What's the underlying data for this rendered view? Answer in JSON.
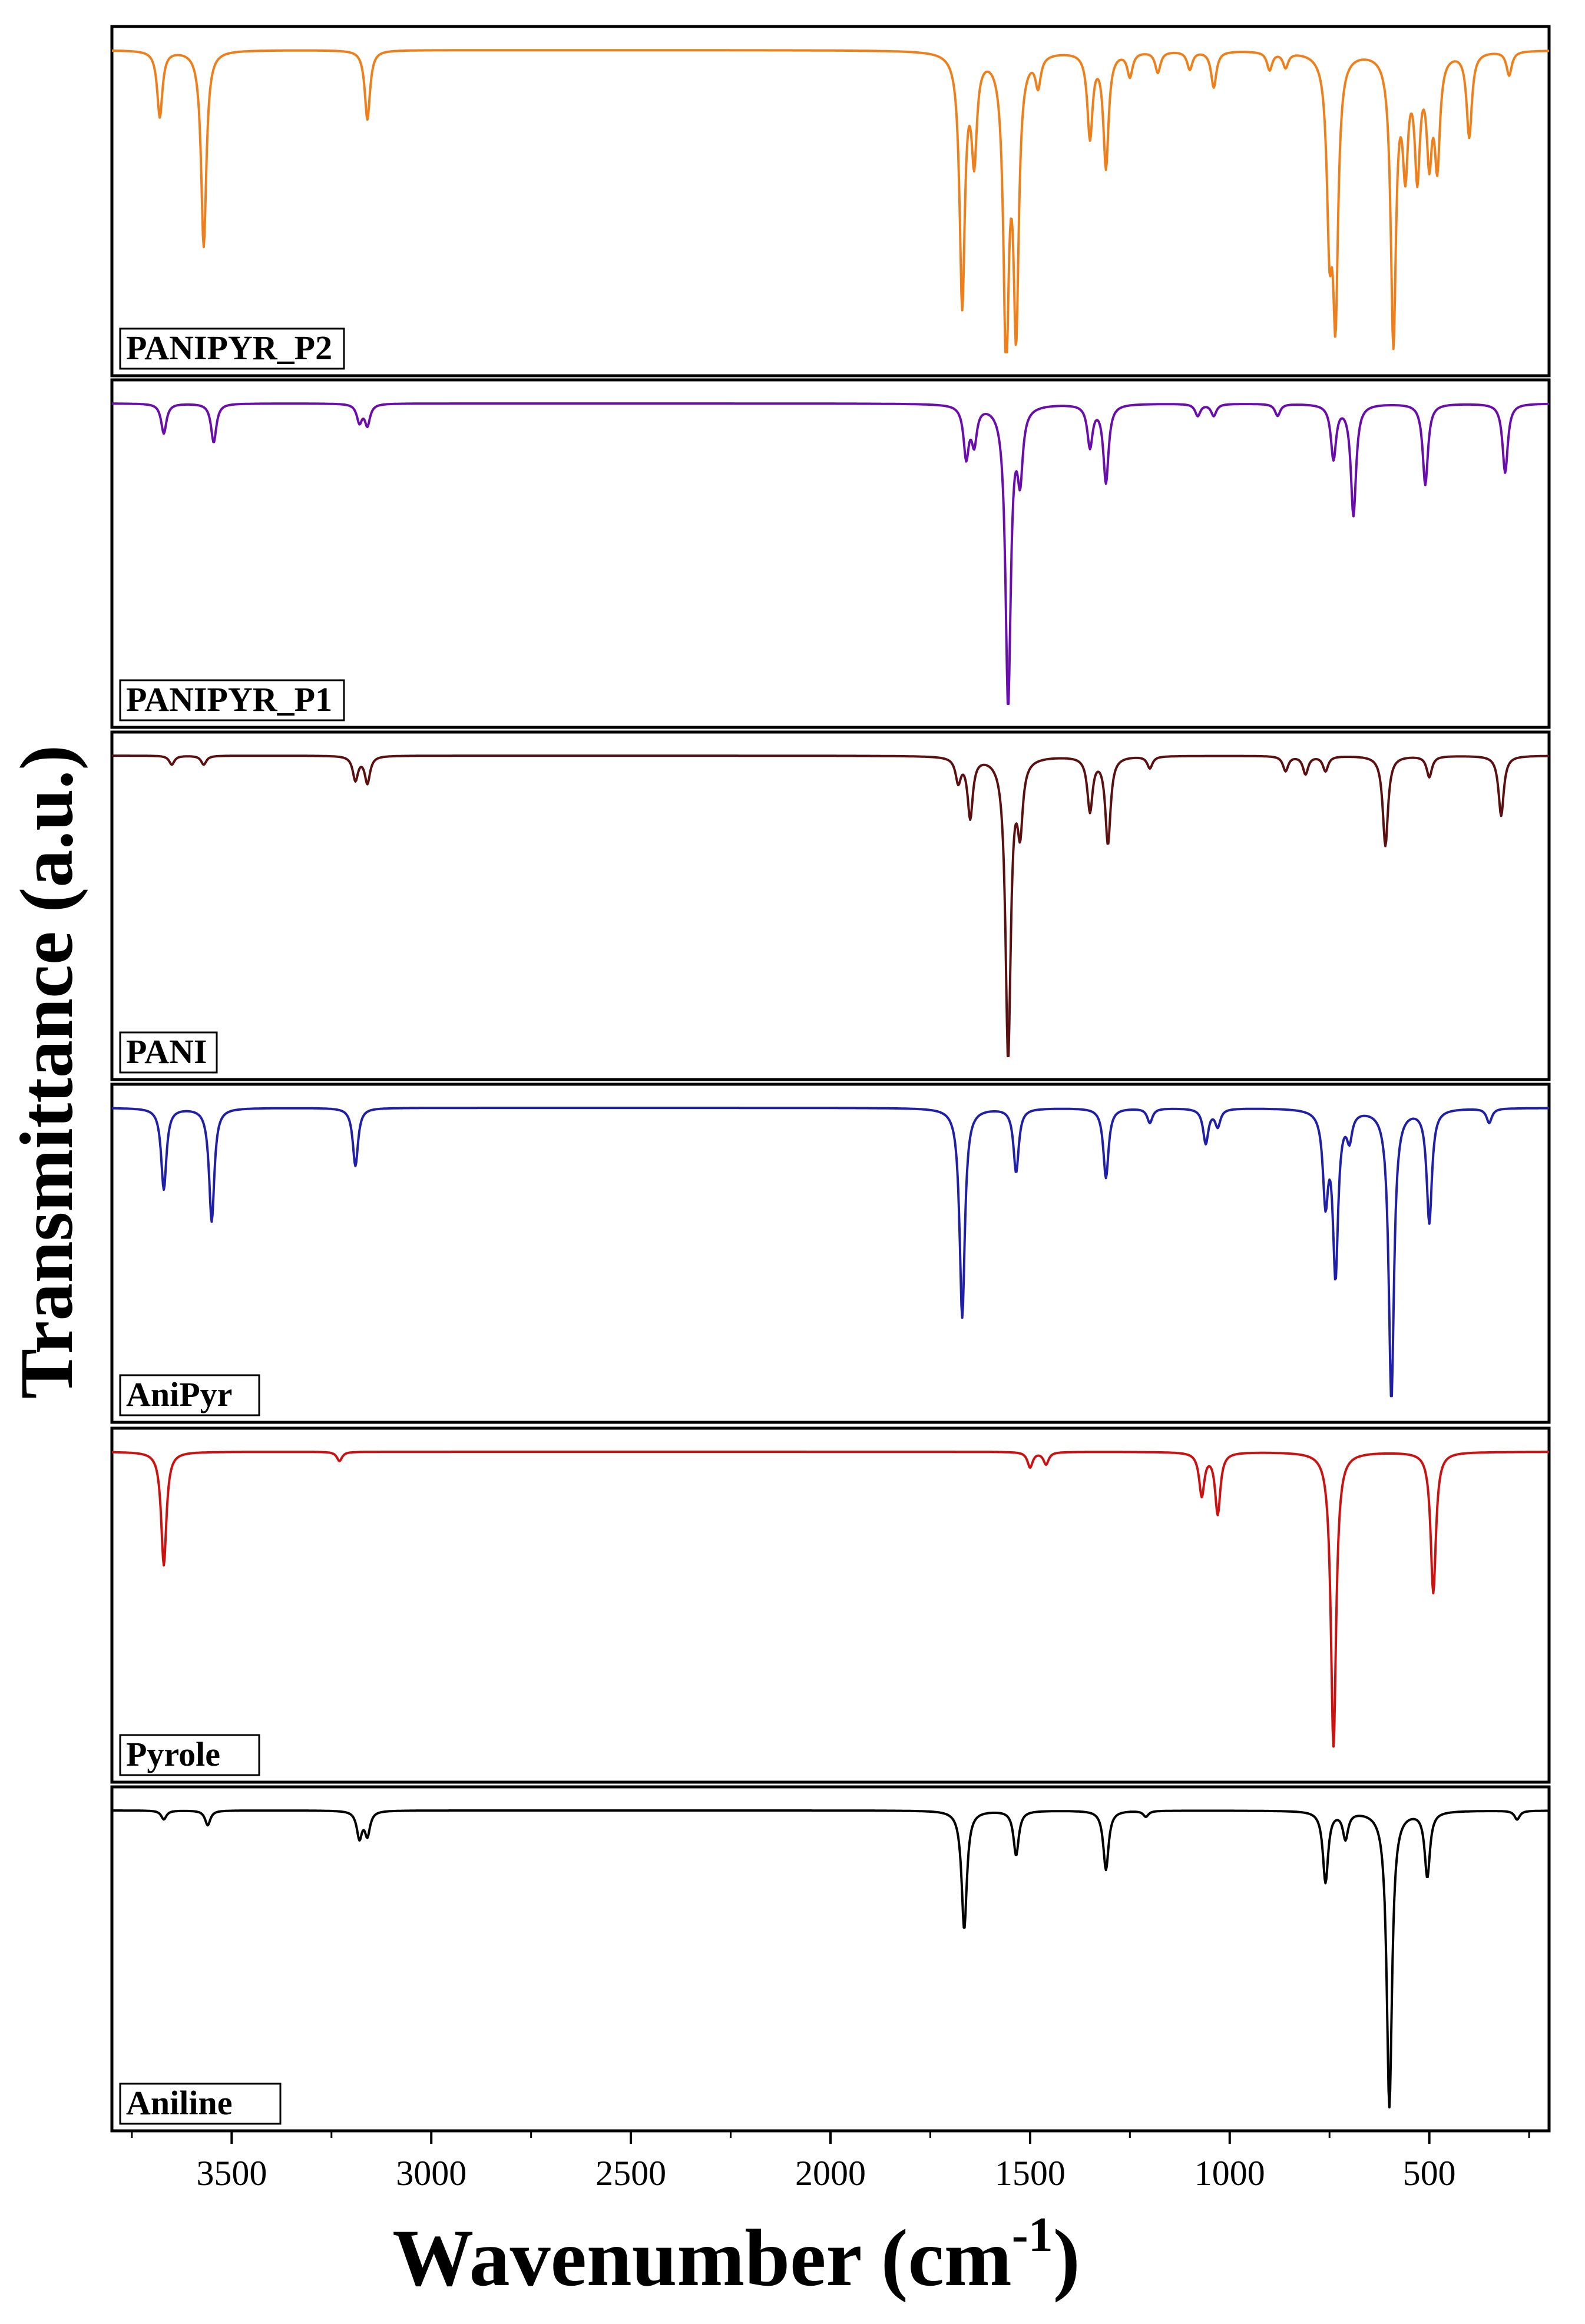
{
  "chart_data": {
    "type": "line",
    "xlabel": "Wavenumber (cm",
    "xlabel_superscript": "-1",
    "xlabel_close": ")",
    "ylabel": "Transmittance (a.u.)",
    "x_reversed": true,
    "xlim": [
      3800,
      200
    ],
    "xticks": [
      3500,
      3000,
      2500,
      2000,
      1500,
      1000,
      500
    ],
    "xtick_labels": [
      "3500",
      "3000",
      "2500",
      "2000",
      "1500",
      "1000",
      "500"
    ],
    "layout": "stacked panels, shared x axis",
    "series": [
      {
        "name": "PANIPYR_P2",
        "color": "#ef7f1a",
        "peaks": [
          {
            "x": 3680,
            "depth": 0.22
          },
          {
            "x": 3570,
            "depth": 0.65
          },
          {
            "x": 3160,
            "depth": 0.23
          },
          {
            "x": 1670,
            "depth": 0.83
          },
          {
            "x": 1640,
            "depth": 0.33
          },
          {
            "x": 1560,
            "depth": 1.0
          },
          {
            "x": 1535,
            "depth": 0.88
          },
          {
            "x": 1480,
            "depth": 0.1
          },
          {
            "x": 1350,
            "depth": 0.28
          },
          {
            "x": 1310,
            "depth": 0.38
          },
          {
            "x": 1250,
            "depth": 0.08
          },
          {
            "x": 1180,
            "depth": 0.07
          },
          {
            "x": 1100,
            "depth": 0.06
          },
          {
            "x": 1040,
            "depth": 0.12
          },
          {
            "x": 900,
            "depth": 0.06
          },
          {
            "x": 860,
            "depth": 0.05
          },
          {
            "x": 750,
            "depth": 0.55
          },
          {
            "x": 735,
            "depth": 0.82
          },
          {
            "x": 590,
            "depth": 0.95
          },
          {
            "x": 560,
            "depth": 0.35
          },
          {
            "x": 530,
            "depth": 0.38
          },
          {
            "x": 500,
            "depth": 0.32
          },
          {
            "x": 480,
            "depth": 0.35
          },
          {
            "x": 400,
            "depth": 0.28
          },
          {
            "x": 300,
            "depth": 0.08
          }
        ]
      },
      {
        "name": "PANIPYR_P1",
        "color": "#6a0dad",
        "peaks": [
          {
            "x": 3670,
            "depth": 0.1
          },
          {
            "x": 3545,
            "depth": 0.13
          },
          {
            "x": 3180,
            "depth": 0.06
          },
          {
            "x": 3160,
            "depth": 0.07
          },
          {
            "x": 1660,
            "depth": 0.17
          },
          {
            "x": 1640,
            "depth": 0.12
          },
          {
            "x": 1555,
            "depth": 1.0
          },
          {
            "x": 1525,
            "depth": 0.22
          },
          {
            "x": 1350,
            "depth": 0.14
          },
          {
            "x": 1310,
            "depth": 0.26
          },
          {
            "x": 1080,
            "depth": 0.04
          },
          {
            "x": 1040,
            "depth": 0.04
          },
          {
            "x": 880,
            "depth": 0.04
          },
          {
            "x": 740,
            "depth": 0.18
          },
          {
            "x": 690,
            "depth": 0.37
          },
          {
            "x": 510,
            "depth": 0.27
          },
          {
            "x": 310,
            "depth": 0.23
          }
        ]
      },
      {
        "name": "PANI",
        "color": "#5a1010",
        "peaks": [
          {
            "x": 3650,
            "depth": 0.03
          },
          {
            "x": 3570,
            "depth": 0.03
          },
          {
            "x": 3190,
            "depth": 0.08
          },
          {
            "x": 3160,
            "depth": 0.09
          },
          {
            "x": 1680,
            "depth": 0.08
          },
          {
            "x": 1650,
            "depth": 0.2
          },
          {
            "x": 1555,
            "depth": 1.0
          },
          {
            "x": 1525,
            "depth": 0.22
          },
          {
            "x": 1350,
            "depth": 0.18
          },
          {
            "x": 1305,
            "depth": 0.29
          },
          {
            "x": 1200,
            "depth": 0.04
          },
          {
            "x": 860,
            "depth": 0.05
          },
          {
            "x": 810,
            "depth": 0.06
          },
          {
            "x": 760,
            "depth": 0.05
          },
          {
            "x": 610,
            "depth": 0.3
          },
          {
            "x": 500,
            "depth": 0.07
          },
          {
            "x": 320,
            "depth": 0.2
          }
        ]
      },
      {
        "name": "AniPyr",
        "color": "#1f1fa8",
        "peaks": [
          {
            "x": 3670,
            "depth": 0.28
          },
          {
            "x": 3550,
            "depth": 0.39
          },
          {
            "x": 3190,
            "depth": 0.2
          },
          {
            "x": 1670,
            "depth": 0.72
          },
          {
            "x": 1535,
            "depth": 0.22
          },
          {
            "x": 1310,
            "depth": 0.24
          },
          {
            "x": 1200,
            "depth": 0.05
          },
          {
            "x": 1060,
            "depth": 0.12
          },
          {
            "x": 1030,
            "depth": 0.06
          },
          {
            "x": 760,
            "depth": 0.3
          },
          {
            "x": 735,
            "depth": 0.56
          },
          {
            "x": 700,
            "depth": 0.09
          },
          {
            "x": 595,
            "depth": 1.0
          },
          {
            "x": 500,
            "depth": 0.39
          },
          {
            "x": 350,
            "depth": 0.05
          }
        ]
      },
      {
        "name": "Pyrole",
        "color": "#cc1111",
        "peaks": [
          {
            "x": 3670,
            "depth": 0.37
          },
          {
            "x": 3230,
            "depth": 0.03
          },
          {
            "x": 1500,
            "depth": 0.05
          },
          {
            "x": 1460,
            "depth": 0.04
          },
          {
            "x": 1070,
            "depth": 0.14
          },
          {
            "x": 1030,
            "depth": 0.2
          },
          {
            "x": 740,
            "depth": 0.96
          },
          {
            "x": 490,
            "depth": 0.46
          }
        ]
      },
      {
        "name": "Aniline",
        "color": "#000000",
        "peaks": [
          {
            "x": 3670,
            "depth": 0.03
          },
          {
            "x": 3560,
            "depth": 0.05
          },
          {
            "x": 3180,
            "depth": 0.09
          },
          {
            "x": 3160,
            "depth": 0.08
          },
          {
            "x": 1665,
            "depth": 0.4
          },
          {
            "x": 1535,
            "depth": 0.15
          },
          {
            "x": 1310,
            "depth": 0.2
          },
          {
            "x": 1210,
            "depth": 0.02
          },
          {
            "x": 760,
            "depth": 0.24
          },
          {
            "x": 710,
            "depth": 0.09
          },
          {
            "x": 600,
            "depth": 1.0
          },
          {
            "x": 505,
            "depth": 0.22
          },
          {
            "x": 280,
            "depth": 0.03
          }
        ]
      }
    ]
  }
}
